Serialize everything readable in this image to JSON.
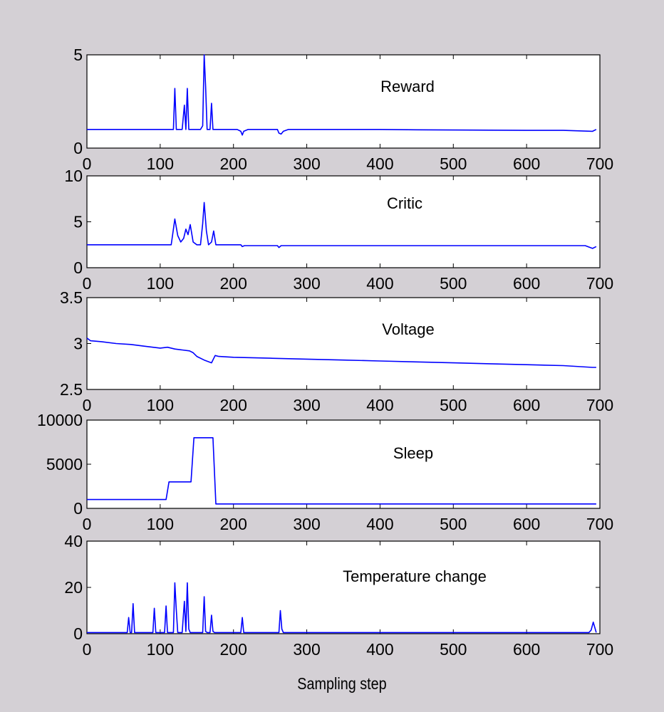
{
  "figure": {
    "background": "#d4d0d5",
    "axes_background": "#ffffff",
    "line_color": "#0000ff",
    "xlabel": "Sampling step"
  },
  "chart_data": [
    {
      "type": "line",
      "annotation": "Reward",
      "xlim": [
        0,
        700
      ],
      "ylim": [
        0,
        5
      ],
      "xticks": [
        0,
        100,
        200,
        300,
        400,
        500,
        600,
        700
      ],
      "yticks": [
        0,
        5
      ],
      "series": [
        {
          "x": [
            0,
            118,
            120,
            122,
            130,
            133,
            135,
            137,
            139,
            141,
            143,
            155,
            158,
            160,
            162,
            164,
            168,
            170,
            172,
            174,
            180,
            205,
            210,
            212,
            214,
            220,
            260,
            262,
            265,
            268,
            275,
            350,
            400,
            450,
            500,
            550,
            600,
            650,
            690,
            695
          ],
          "y": [
            1.0,
            1.0,
            3.2,
            1.0,
            1.0,
            2.3,
            1.0,
            3.2,
            1.0,
            1.0,
            1.0,
            1.0,
            1.2,
            5.0,
            3.3,
            1.0,
            1.0,
            2.4,
            1.0,
            1.0,
            1.0,
            1.0,
            0.9,
            0.7,
            0.9,
            1.0,
            1.0,
            0.8,
            0.75,
            0.9,
            1.0,
            1.0,
            1.0,
            0.98,
            0.97,
            0.96,
            0.95,
            0.95,
            0.9,
            1.0
          ]
        }
      ]
    },
    {
      "type": "line",
      "annotation": "Critic",
      "xlim": [
        0,
        700
      ],
      "ylim": [
        0,
        10
      ],
      "xticks": [
        0,
        100,
        200,
        300,
        400,
        500,
        600,
        700
      ],
      "yticks": [
        0,
        5,
        10
      ],
      "series": [
        {
          "x": [
            0,
            115,
            120,
            124,
            128,
            132,
            135,
            138,
            141,
            145,
            150,
            155,
            158,
            160,
            163,
            166,
            170,
            173,
            176,
            180,
            210,
            212,
            215,
            260,
            262,
            265,
            300,
            400,
            500,
            600,
            680,
            690,
            695
          ],
          "y": [
            2.5,
            2.5,
            5.3,
            3.5,
            2.8,
            3.2,
            4.2,
            3.6,
            4.7,
            2.8,
            2.5,
            2.5,
            4.8,
            7.1,
            4.0,
            2.5,
            2.8,
            4.0,
            2.5,
            2.5,
            2.5,
            2.3,
            2.4,
            2.4,
            2.2,
            2.4,
            2.4,
            2.4,
            2.4,
            2.4,
            2.4,
            2.1,
            2.3
          ]
        }
      ]
    },
    {
      "type": "line",
      "annotation": "Voltage",
      "xlim": [
        0,
        700
      ],
      "ylim": [
        2.5,
        3.5
      ],
      "xticks": [
        0,
        100,
        200,
        300,
        400,
        500,
        600,
        700
      ],
      "yticks": [
        2.5,
        3,
        3.5
      ],
      "series": [
        {
          "x": [
            0,
            5,
            20,
            40,
            60,
            80,
            100,
            110,
            120,
            130,
            140,
            145,
            150,
            160,
            170,
            175,
            180,
            200,
            250,
            300,
            350,
            400,
            450,
            500,
            550,
            600,
            650,
            690,
            695
          ],
          "y": [
            3.06,
            3.03,
            3.02,
            3.0,
            2.99,
            2.97,
            2.95,
            2.96,
            2.94,
            2.93,
            2.92,
            2.9,
            2.86,
            2.82,
            2.79,
            2.87,
            2.86,
            2.85,
            2.84,
            2.83,
            2.82,
            2.81,
            2.8,
            2.79,
            2.78,
            2.77,
            2.76,
            2.74,
            2.74
          ]
        }
      ]
    },
    {
      "type": "line",
      "annotation": "Sleep",
      "xlim": [
        0,
        700
      ],
      "ylim": [
        0,
        10000
      ],
      "xticks": [
        0,
        100,
        200,
        300,
        400,
        500,
        600,
        700
      ],
      "yticks": [
        0,
        5000,
        10000
      ],
      "series": [
        {
          "x": [
            0,
            108,
            112,
            142,
            146,
            172,
            176,
            695
          ],
          "y": [
            1000,
            1000,
            3000,
            3000,
            8000,
            8000,
            500,
            500
          ]
        }
      ]
    },
    {
      "type": "line",
      "annotation": "Temperature change",
      "xlim": [
        0,
        700
      ],
      "ylim": [
        0,
        40
      ],
      "xticks": [
        0,
        100,
        200,
        300,
        400,
        500,
        600,
        700
      ],
      "yticks": [
        0,
        20,
        40
      ],
      "series": [
        {
          "x": [
            0,
            55,
            57,
            59,
            61,
            63,
            65,
            67,
            90,
            92,
            94,
            106,
            108,
            110,
            118,
            120,
            122,
            124,
            126,
            130,
            133,
            135,
            137,
            139,
            141,
            143,
            158,
            160,
            162,
            164,
            168,
            170,
            172,
            174,
            210,
            212,
            214,
            262,
            264,
            266,
            268,
            380,
            500,
            600,
            685,
            688,
            691,
            695
          ],
          "y": [
            0.5,
            0.5,
            7,
            0.5,
            0.5,
            13,
            0.5,
            0.5,
            0.5,
            11,
            0.5,
            0.5,
            12,
            0.5,
            0.5,
            22,
            10,
            0.5,
            0.5,
            0.5,
            14,
            1,
            22,
            2,
            0.5,
            0.5,
            0.5,
            16,
            1,
            0.5,
            0.5,
            8,
            1,
            0.5,
            0.5,
            7,
            0.5,
            0.5,
            10,
            2,
            0.5,
            0.5,
            0.5,
            0.5,
            0.5,
            1.5,
            5,
            0.5
          ]
        }
      ]
    }
  ]
}
